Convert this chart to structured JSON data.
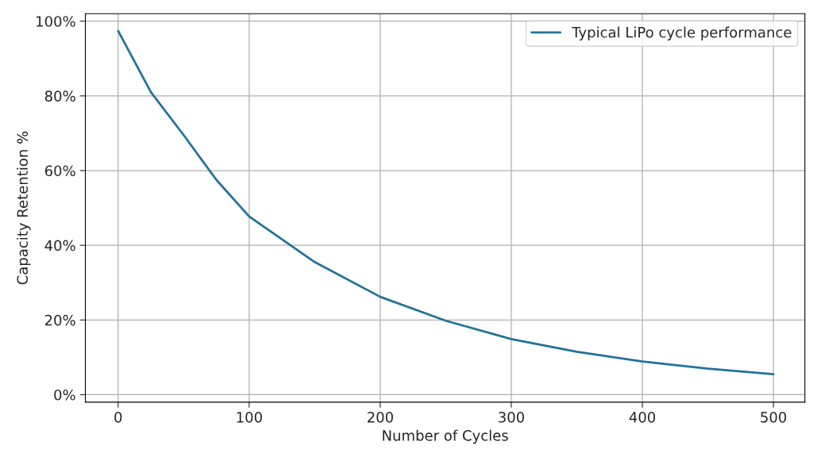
{
  "chart_data": {
    "type": "line",
    "xlabel": "Number of Cycles",
    "ylabel": "Capacity Retention %",
    "x": [
      0,
      25,
      50,
      75,
      100,
      150,
      200,
      250,
      300,
      350,
      400,
      450,
      500
    ],
    "series": [
      {
        "name": "Typical LiPo cycle performance",
        "color": "#21739a",
        "values": [
          97.4,
          81,
          69.5,
          57.5,
          47.7,
          35.5,
          26.2,
          19.8,
          14.9,
          11.5,
          8.9,
          7,
          5.5
        ]
      }
    ],
    "xlim": [
      -25,
      524
    ],
    "ylim": [
      -2,
      102
    ],
    "xticks": [
      0,
      100,
      200,
      300,
      400,
      500
    ],
    "yticks": [
      {
        "value": 0,
        "label": "0%"
      },
      {
        "value": 20,
        "label": "20%"
      },
      {
        "value": 40,
        "label": "40%"
      },
      {
        "value": 60,
        "label": "60%"
      },
      {
        "value": 80,
        "label": "80%"
      },
      {
        "value": 100,
        "label": "100%"
      }
    ],
    "grid": true,
    "legend": "top right",
    "marker": "none",
    "line_style": "solid"
  }
}
